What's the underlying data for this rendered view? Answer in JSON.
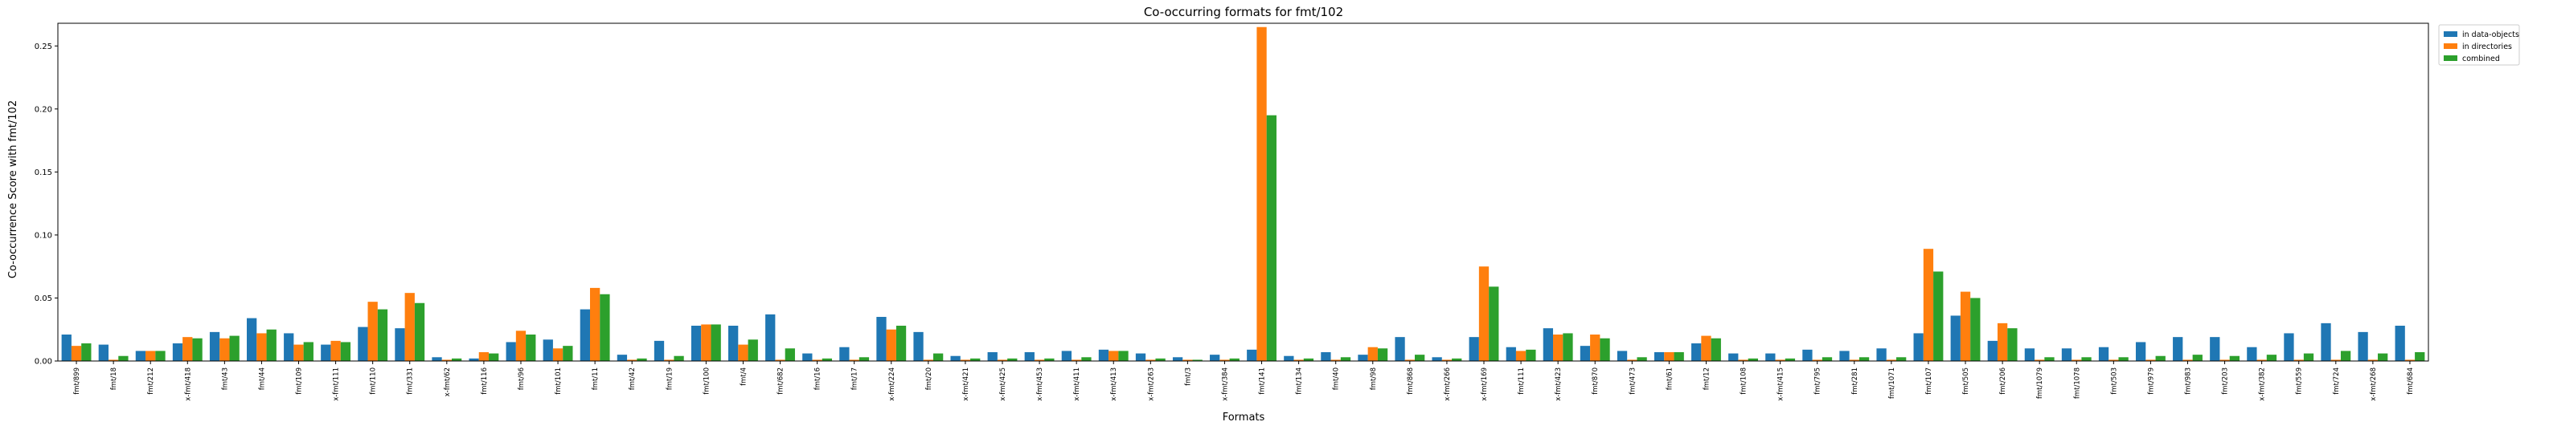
{
  "chart_data": {
    "type": "bar",
    "title": "Co-occurring formats for fmt/102",
    "xlabel": "Formats",
    "ylabel": "Co-occurrence Score with fmt/102",
    "ylim": [
      0,
      0.268
    ],
    "yticks": [
      0.0,
      0.05,
      0.1,
      0.15,
      0.2,
      0.25
    ],
    "ytick_labels": [
      "0.00",
      "0.05",
      "0.10",
      "0.15",
      "0.20",
      "0.25"
    ],
    "grid": false,
    "legend_position": "outside-top-right",
    "categories": [
      "fmt/899",
      "fmt/18",
      "fmt/212",
      "x-fmt/418",
      "fmt/43",
      "fmt/44",
      "fmt/109",
      "x-fmt/111",
      "fmt/110",
      "fmt/331",
      "x-fmt/62",
      "fmt/116",
      "fmt/96",
      "fmt/101",
      "fmt/11",
      "fmt/42",
      "fmt/19",
      "fmt/100",
      "fmt/4",
      "fmt/682",
      "fmt/16",
      "fmt/17",
      "x-fmt/224",
      "fmt/20",
      "x-fmt/421",
      "x-fmt/425",
      "x-fmt/453",
      "x-fmt/411",
      "x-fmt/413",
      "x-fmt/263",
      "fmt/3",
      "x-fmt/384",
      "fmt/141",
      "fmt/134",
      "fmt/40",
      "fmt/98",
      "fmt/868",
      "x-fmt/266",
      "x-fmt/169",
      "fmt/111",
      "x-fmt/423",
      "fmt/870",
      "fmt/473",
      "fmt/61",
      "fmt/12",
      "fmt/108",
      "x-fmt/415",
      "fmt/795",
      "fmt/281",
      "fmt/1071",
      "fmt/107",
      "fmt/505",
      "fmt/206",
      "fmt/1079",
      "fmt/1078",
      "fmt/503",
      "fmt/979",
      "fmt/983",
      "fmt/203",
      "x-fmt/382",
      "fmt/559",
      "fmt/724",
      "x-fmt/268",
      "fmt/684"
    ],
    "series": [
      {
        "name": "in data-objects",
        "color": "#1f77b4",
        "values": [
          0.021,
          0.013,
          0.008,
          0.014,
          0.023,
          0.034,
          0.022,
          0.013,
          0.027,
          0.026,
          0.003,
          0.002,
          0.015,
          0.017,
          0.041,
          0.005,
          0.016,
          0.028,
          0.028,
          0.037,
          0.006,
          0.011,
          0.035,
          0.023,
          0.004,
          0.007,
          0.007,
          0.008,
          0.009,
          0.006,
          0.003,
          0.005,
          0.009,
          0.004,
          0.007,
          0.005,
          0.019,
          0.003,
          0.019,
          0.011,
          0.026,
          0.012,
          0.008,
          0.007,
          0.014,
          0.006,
          0.006,
          0.009,
          0.008,
          0.01,
          0.022,
          0.036,
          0.016,
          0.01,
          0.01,
          0.011,
          0.015,
          0.019,
          0.019,
          0.011,
          0.022,
          0.03,
          0.023,
          0.028
        ]
      },
      {
        "name": "in directories",
        "color": "#ff7f0e",
        "values": [
          0.012,
          0.001,
          0.008,
          0.019,
          0.018,
          0.022,
          0.013,
          0.016,
          0.047,
          0.054,
          0.001,
          0.007,
          0.024,
          0.01,
          0.058,
          0.001,
          0.001,
          0.029,
          0.013,
          0.001,
          0.001,
          0.001,
          0.025,
          0.001,
          0.001,
          0.001,
          0.001,
          0.001,
          0.008,
          0.001,
          0.001,
          0.001,
          0.265,
          0.001,
          0.001,
          0.011,
          0.001,
          0.001,
          0.075,
          0.008,
          0.021,
          0.021,
          0.001,
          0.007,
          0.02,
          0.001,
          0.001,
          0.001,
          0.001,
          0.001,
          0.089,
          0.055,
          0.03,
          0.001,
          0.001,
          0.001,
          0.001,
          0.001,
          0.001,
          0.001,
          0.001,
          0.001,
          0.001,
          0.001
        ]
      },
      {
        "name": "combined",
        "color": "#2ca02c",
        "values": [
          0.014,
          0.004,
          0.008,
          0.018,
          0.02,
          0.025,
          0.015,
          0.015,
          0.041,
          0.046,
          0.002,
          0.006,
          0.021,
          0.012,
          0.053,
          0.002,
          0.004,
          0.029,
          0.017,
          0.01,
          0.002,
          0.003,
          0.028,
          0.006,
          0.002,
          0.002,
          0.002,
          0.003,
          0.008,
          0.002,
          0.001,
          0.002,
          0.195,
          0.002,
          0.003,
          0.01,
          0.005,
          0.002,
          0.059,
          0.009,
          0.022,
          0.018,
          0.003,
          0.007,
          0.018,
          0.002,
          0.002,
          0.003,
          0.003,
          0.003,
          0.071,
          0.05,
          0.026,
          0.003,
          0.003,
          0.003,
          0.004,
          0.005,
          0.004,
          0.005,
          0.006,
          0.008,
          0.006,
          0.007
        ]
      }
    ]
  }
}
